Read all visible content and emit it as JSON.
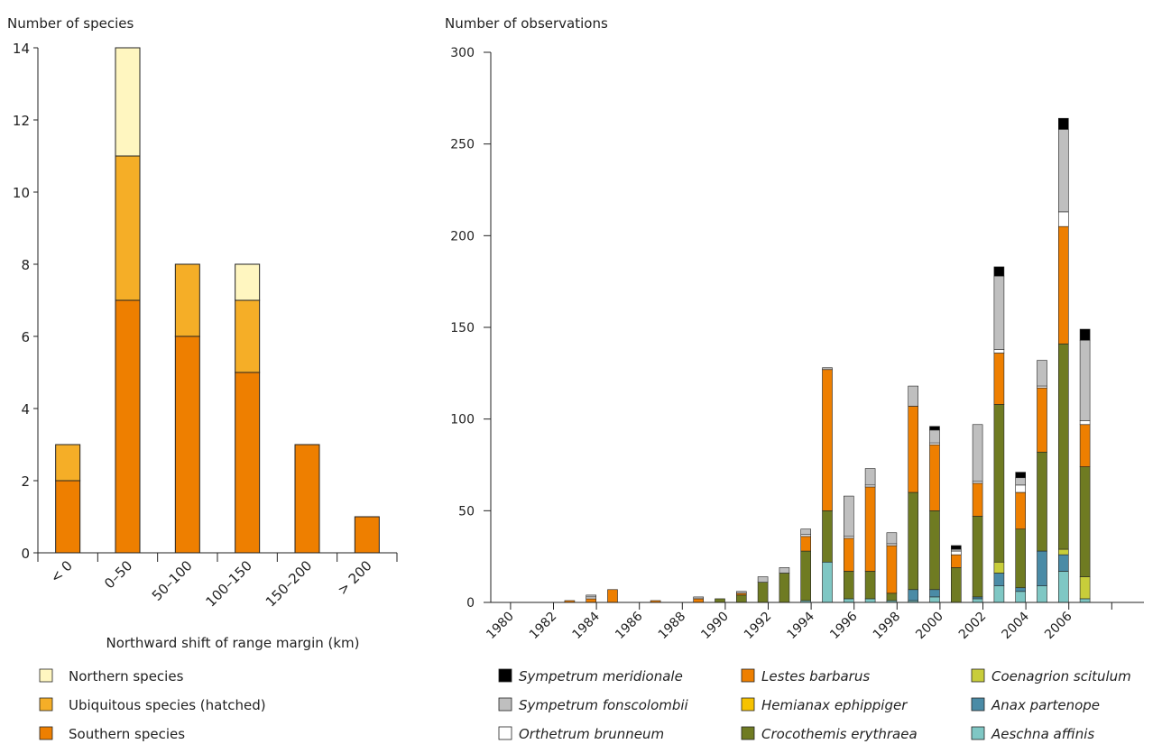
{
  "chart_data": [
    {
      "type": "bar",
      "stacked": true,
      "ylabel": "Number of species",
      "xlabel": "Northward shift of range margin (km)",
      "ylim": [
        0,
        14
      ],
      "yticks": [
        "0",
        "2",
        "4",
        "6",
        "8",
        "10",
        "12",
        "14"
      ],
      "categories": [
        "< 0",
        "0–50",
        "50–100",
        "100–150",
        "150–200",
        "> 200"
      ],
      "series": [
        {
          "name": "Southern species",
          "color": "#ee7f00",
          "values": [
            2,
            7,
            6,
            5,
            3,
            1
          ]
        },
        {
          "name": "Ubiquitous species (hatched)",
          "color": "#f5ae27",
          "values": [
            1,
            4,
            2,
            2,
            0,
            0
          ]
        },
        {
          "name": "Northern species",
          "color": "#fff6c0",
          "values": [
            0,
            3,
            0,
            1,
            0,
            0
          ]
        }
      ],
      "legend_position": "bottom"
    },
    {
      "type": "bar",
      "stacked": true,
      "ylabel": "Number of observations",
      "ylim": [
        0,
        300
      ],
      "yticks": [
        "0",
        "50",
        "100",
        "150",
        "200",
        "250",
        "300"
      ],
      "categories": [
        "1980",
        "1981",
        "1982",
        "1983",
        "1984",
        "1985",
        "1986",
        "1987",
        "1988",
        "1989",
        "1990",
        "1991",
        "1992",
        "1993",
        "1994",
        "1995",
        "1996",
        "1997",
        "1998",
        "1999",
        "2000",
        "2001",
        "2002",
        "2003",
        "2004",
        "2005",
        "2006",
        "2007"
      ],
      "xtick_labels": [
        "1980",
        "1982",
        "1984",
        "1986",
        "1988",
        "1990",
        "1992",
        "1994",
        "1996",
        "1998",
        "2000",
        "2002",
        "2004",
        "2006"
      ],
      "series": [
        {
          "name": "Aeschna affinis",
          "color": "#7fc7c4",
          "values": [
            0,
            0,
            0,
            0,
            0,
            0,
            0,
            0,
            0,
            0,
            0,
            0,
            0,
            0,
            1,
            22,
            2,
            2,
            1,
            1,
            3,
            0,
            2,
            9,
            6,
            9,
            17,
            2
          ]
        },
        {
          "name": "Anax partenope",
          "color": "#4a8ba6",
          "values": [
            0,
            0,
            0,
            0,
            0,
            0,
            0,
            0,
            0,
            0,
            0,
            0,
            0,
            0,
            0,
            0,
            0,
            0,
            0,
            6,
            4,
            0,
            1,
            7,
            2,
            19,
            9,
            0
          ]
        },
        {
          "name": "Coenagrion scitulum",
          "color": "#c8cd3a",
          "values": [
            0,
            0,
            0,
            0,
            0,
            0,
            0,
            0,
            0,
            0,
            0,
            0,
            0,
            0,
            0,
            0,
            0,
            0,
            0,
            0,
            0,
            0,
            0,
            6,
            0,
            0,
            3,
            12
          ]
        },
        {
          "name": "Hemianax ephippiger",
          "color": "#f6c200",
          "values": [
            0,
            0,
            0,
            0,
            0,
            0,
            0,
            0,
            0,
            0,
            0,
            0,
            0,
            0,
            0,
            0,
            0,
            0,
            0,
            0,
            0,
            0,
            0,
            0,
            0,
            0,
            0,
            0
          ]
        },
        {
          "name": "Crocothemis erythraea",
          "color": "#6f7b22",
          "values": [
            0,
            0,
            0,
            0,
            0,
            0,
            0,
            0,
            0,
            0,
            2,
            4,
            11,
            16,
            27,
            28,
            15,
            15,
            4,
            53,
            43,
            19,
            44,
            86,
            32,
            54,
            112,
            60
          ]
        },
        {
          "name": "Lestes barbarus",
          "color": "#ee7f00",
          "values": [
            0,
            0,
            0,
            1,
            2,
            7,
            0,
            1,
            0,
            2,
            0,
            1,
            0,
            0,
            8,
            77,
            18,
            46,
            26,
            47,
            36,
            7,
            18,
            28,
            20,
            35,
            64,
            23
          ]
        },
        {
          "name": "Orthetrum brunneum",
          "color": "#ffffff",
          "values": [
            0,
            0,
            0,
            0,
            1,
            0,
            0,
            0,
            0,
            0,
            0,
            0,
            0,
            0,
            1,
            0,
            1,
            1,
            1,
            0,
            1,
            2,
            1,
            2,
            4,
            1,
            8,
            2
          ]
        },
        {
          "name": "Sympetrum fonscolombii",
          "color": "#bfbfbf",
          "values": [
            0,
            0,
            0,
            0,
            1,
            0,
            0,
            0,
            0,
            1,
            0,
            1,
            3,
            3,
            3,
            1,
            22,
            9,
            6,
            11,
            7,
            1,
            31,
            40,
            4,
            14,
            45,
            44
          ]
        },
        {
          "name": "Sympetrum meridionale",
          "color": "#000000",
          "values": [
            0,
            0,
            0,
            0,
            0,
            0,
            0,
            0,
            0,
            0,
            0,
            0,
            0,
            0,
            0,
            0,
            0,
            0,
            0,
            0,
            2,
            2,
            0,
            5,
            3,
            0,
            6,
            6
          ]
        }
      ],
      "legend_columns": [
        [
          "Sympetrum meridionale",
          "Sympetrum fonscolombii",
          "Orthetrum brunneum"
        ],
        [
          "Lestes barbarus",
          "Hemianax ephippiger",
          "Crocothemis erythraea"
        ],
        [
          "Coenagrion scitulum",
          "Anax partenope",
          "Aeschna affinis"
        ]
      ],
      "legend_position": "bottom"
    }
  ]
}
